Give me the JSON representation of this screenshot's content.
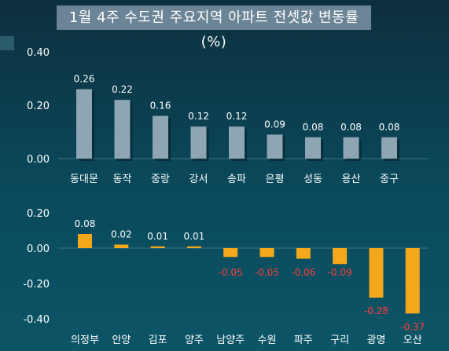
{
  "title": "1월 4주 수도권 주요지역 아파트 전셋값 변동률(%)",
  "colors": {
    "upper_bar": "#8ea6b4",
    "lower_bar": "#f5a81c",
    "positive_label": "#ffffff",
    "negative_label": "#ff3b3b"
  },
  "chart_data": [
    {
      "type": "bar",
      "title": "",
      "categories": [
        "동대문",
        "동작",
        "중랑",
        "강서",
        "송파",
        "은평",
        "성동",
        "용산",
        "중구"
      ],
      "values": [
        0.26,
        0.22,
        0.16,
        0.12,
        0.12,
        0.09,
        0.08,
        0.08,
        0.08
      ],
      "data_labels": [
        "0.26",
        "0.22",
        "0.16",
        "0.12",
        "0.12",
        "0.09",
        "0.08",
        "0.08",
        "0.08"
      ],
      "yticks": [
        "0.40",
        "0.20",
        "0.00"
      ],
      "ylim": [
        0,
        0.4
      ],
      "grid": false
    },
    {
      "type": "bar",
      "title": "",
      "categories": [
        "의정부",
        "안양",
        "김포",
        "양주",
        "남양주",
        "수원",
        "파주",
        "구리",
        "광명",
        "오산"
      ],
      "values": [
        0.08,
        0.02,
        0.01,
        0.01,
        -0.05,
        -0.05,
        -0.06,
        -0.09,
        -0.28,
        -0.37
      ],
      "data_labels": [
        "0.08",
        "0.02",
        "0.01",
        "0.01",
        "-0.05",
        "-0.05",
        "-0.06",
        "-0.09",
        "-0.28",
        "-0.37"
      ],
      "yticks": [
        "0.20",
        "0.00",
        "-0.20",
        "-0.40"
      ],
      "ylim": [
        -0.4,
        0.2
      ],
      "grid": false
    }
  ]
}
